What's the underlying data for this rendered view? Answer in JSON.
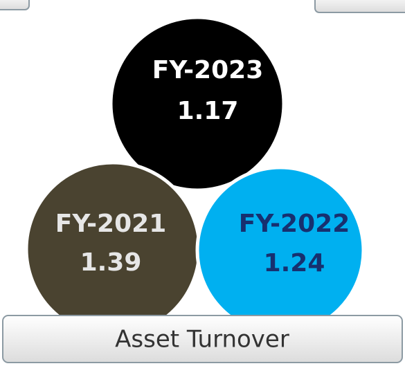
{
  "title": "Asset Turnover",
  "circles": [
    {
      "label": "FY-2023",
      "value": 1.17,
      "color": "#000000",
      "text_color": "#ffffff"
    },
    {
      "label": "FY-2021",
      "value": 1.39,
      "color": "#4a4330",
      "text_color": "#e6e6e6"
    },
    {
      "label": "FY-2022",
      "value": 1.24,
      "color": "#00b0f0",
      "text_color": "#17306f"
    }
  ]
}
